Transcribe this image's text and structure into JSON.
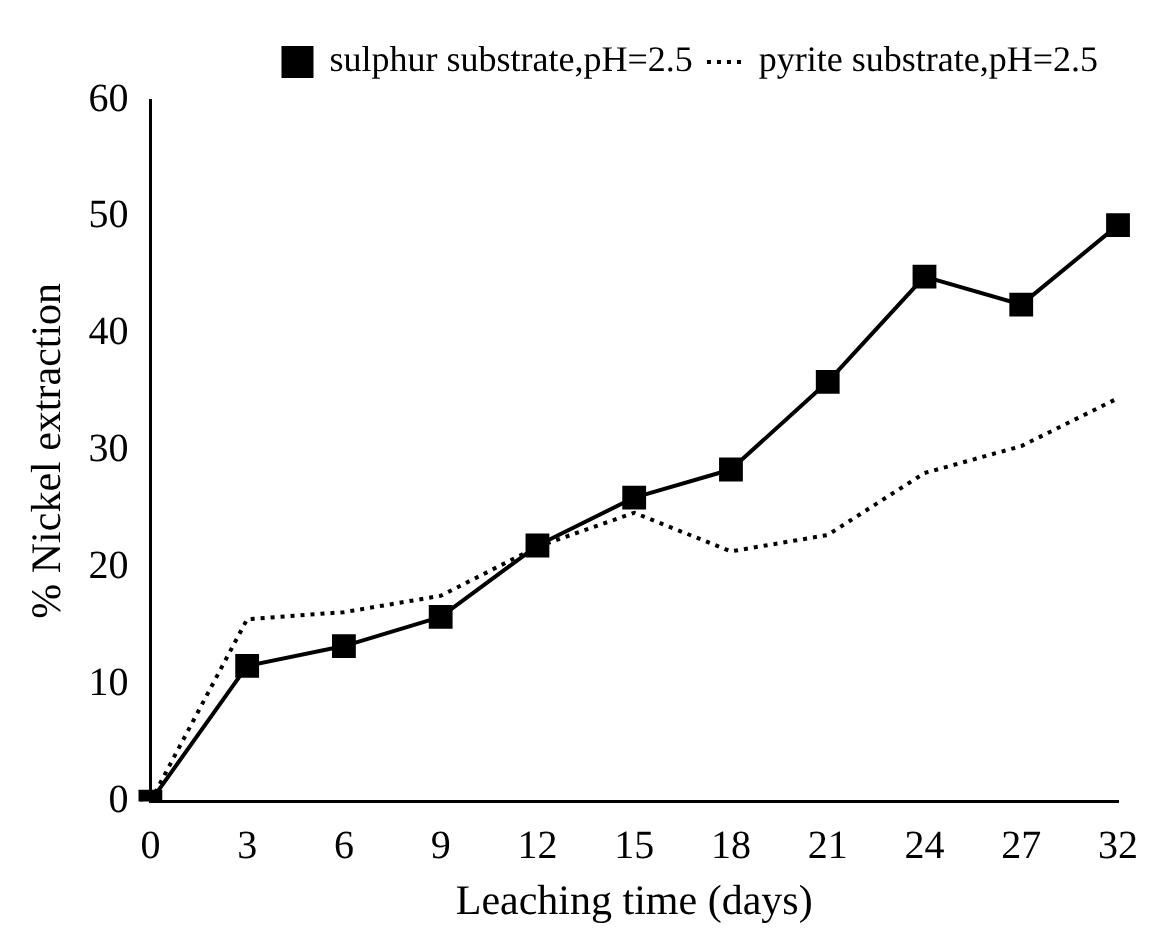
{
  "chart_data": {
    "type": "line",
    "xlabel": "Leaching time (days)",
    "ylabel": "% Nickel extraction",
    "categories": [
      "0",
      "3",
      "6",
      "9",
      "12",
      "15",
      "18",
      "21",
      "24",
      "27",
      "32"
    ],
    "series": [
      {
        "name": "sulphur substrate,pH=2.5",
        "color": "#000000",
        "marker": "square",
        "line_style": "solid",
        "values": [
          0,
          11.6,
          13.3,
          15.8,
          21.9,
          26.0,
          28.4,
          35.9,
          44.9,
          42.5,
          49.3
        ]
      },
      {
        "name": "pyrite substrate,pH=2.5",
        "color": "#000000",
        "marker": "none",
        "line_style": "dotted",
        "values": [
          0,
          15.6,
          16.2,
          17.6,
          21.8,
          24.7,
          21.4,
          22.8,
          28.1,
          30.4,
          34.5
        ]
      }
    ],
    "ylim": [
      0,
      60
    ],
    "yticks": [
      0,
      10,
      20,
      30,
      40,
      50,
      60
    ],
    "grid": false,
    "legend": "top right"
  }
}
